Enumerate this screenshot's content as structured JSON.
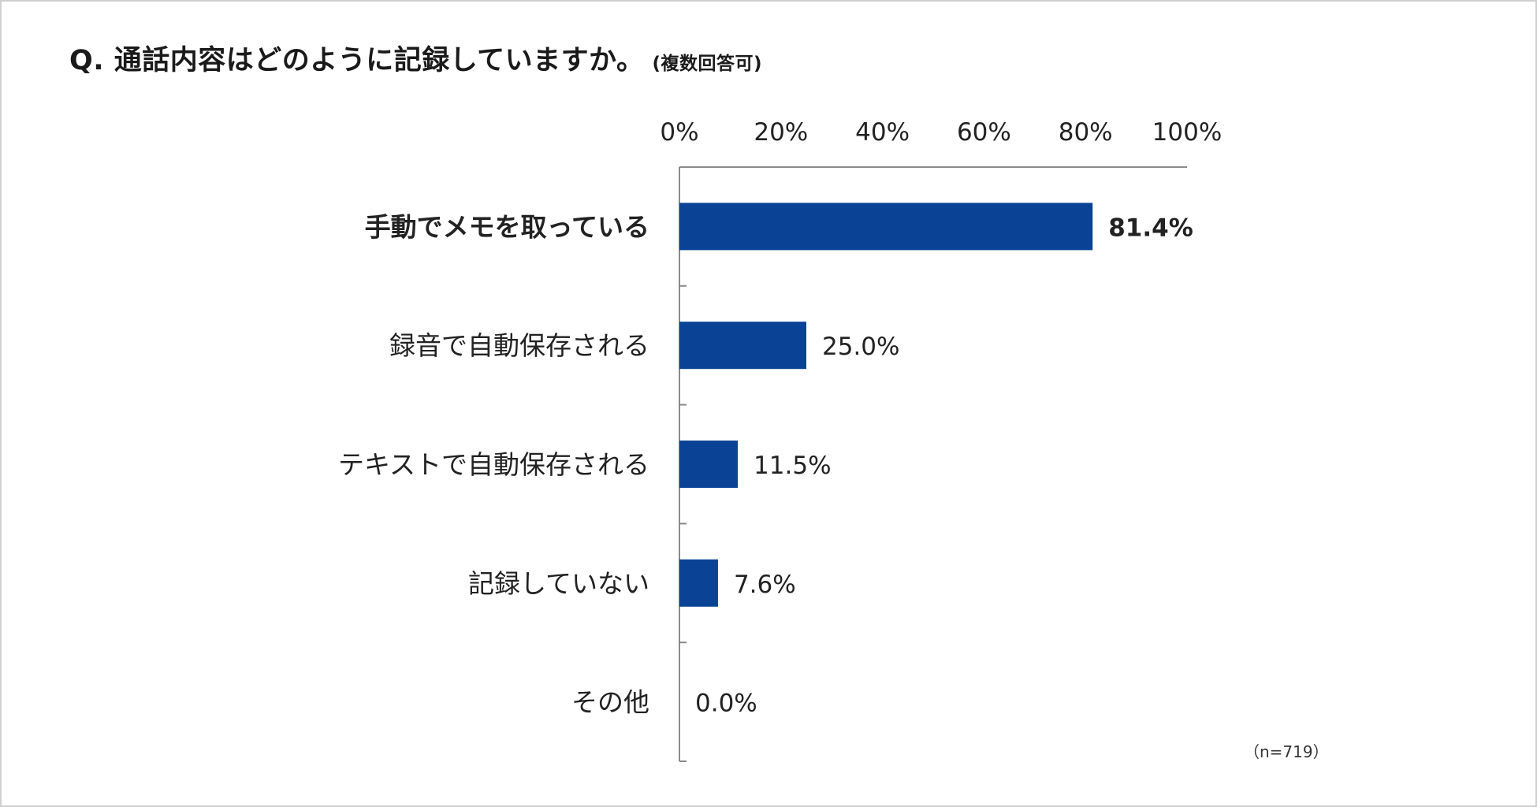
{
  "title": {
    "main": "Q. 通話内容はどのように記録していますか。",
    "sub": "(複数回答可)"
  },
  "note": "（n=719）",
  "colors": {
    "bar": "#0a4396",
    "axis": "#8a8a8a",
    "border": "#cfcfcf"
  },
  "chart_data": {
    "type": "bar",
    "orientation": "horizontal",
    "categories": [
      "手動でメモを取っている",
      "録音で自動保存される",
      "テキストで自動保存される",
      "記録していない",
      "その他"
    ],
    "values": [
      81.4,
      25.0,
      11.5,
      7.6,
      0.0
    ],
    "value_labels": [
      "81.4%",
      "25.0%",
      "11.5%",
      "7.6%",
      "0.0%"
    ],
    "highlight_index": 0,
    "xlim": [
      0,
      100
    ],
    "x_ticks": [
      0,
      20,
      40,
      60,
      80,
      100
    ],
    "x_tick_labels": [
      "0%",
      "20%",
      "40%",
      "60%",
      "80%",
      "100%"
    ],
    "axis_position": "top",
    "grid": false,
    "legend": "none"
  }
}
